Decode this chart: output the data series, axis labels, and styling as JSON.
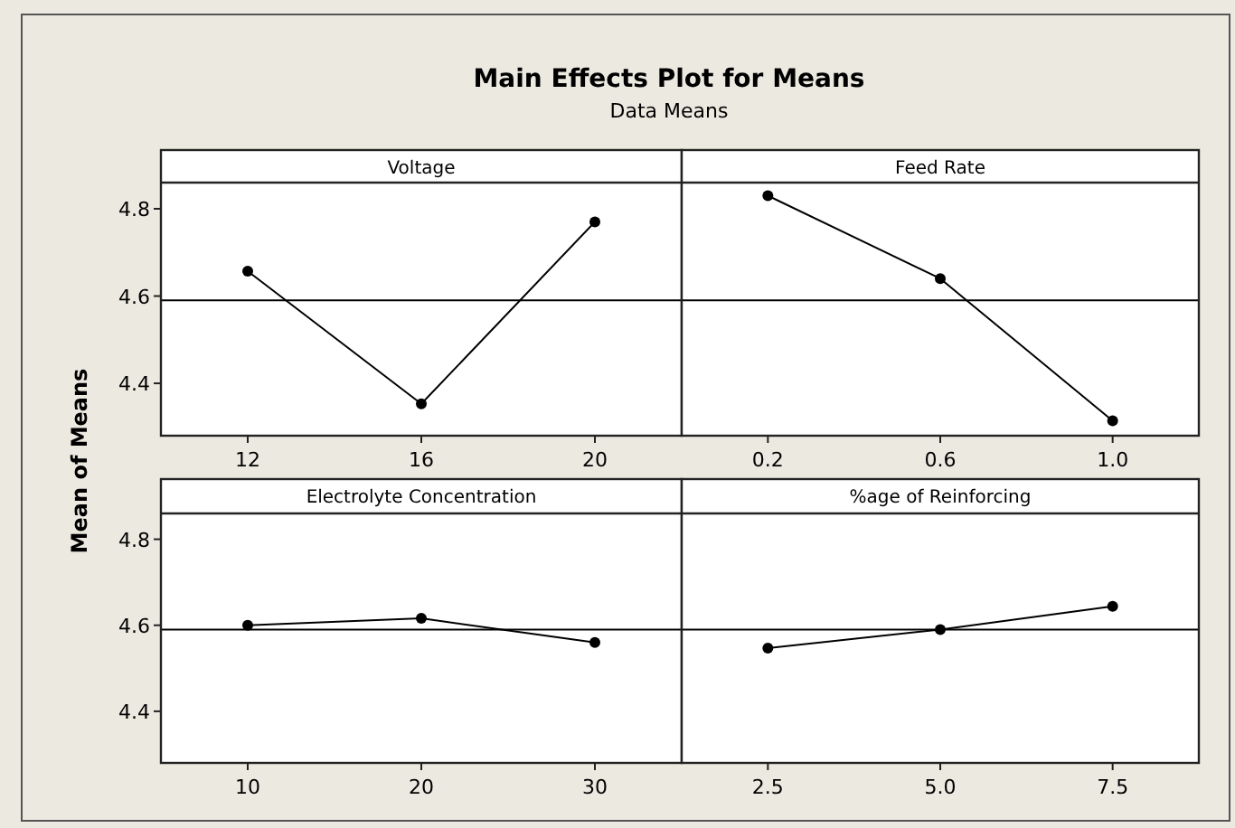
{
  "chart_data": [
    {
      "type": "other",
      "title": "Main Effects Plot for Means",
      "subtitle": "Data Means",
      "ylabel": "Mean of Means"
    },
    {
      "type": "line",
      "title": "Voltage",
      "x": [
        12,
        16,
        20
      ],
      "series": [
        {
          "color": "#000000",
          "values": [
            4.657,
            4.353,
            4.77
          ]
        }
      ],
      "xlim": [
        10,
        22
      ],
      "xticks": [
        12,
        16,
        20
      ],
      "ylim": [
        4.28,
        4.86
      ],
      "yticks": [
        4.4,
        4.6,
        4.8
      ],
      "ref_lines": [
        {
          "axis": "y",
          "value": 4.59,
          "color": "#000000"
        }
      ],
      "marker": "circle",
      "grid": false
    },
    {
      "type": "line",
      "title": "Feed Rate",
      "x": [
        0.2,
        0.6,
        1.0
      ],
      "series": [
        {
          "color": "#000000",
          "values": [
            4.83,
            4.64,
            4.314
          ]
        }
      ],
      "xlim": [
        0,
        1.2
      ],
      "xticks": [
        {
          "value": 0.2,
          "label": "0.2"
        },
        {
          "value": 0.6,
          "label": "0.6"
        },
        {
          "value": 1.0,
          "label": "1.0"
        }
      ],
      "ylim": [
        4.28,
        4.86
      ],
      "tick_labels": "x",
      "ref_lines": [
        {
          "axis": "y",
          "value": 4.59,
          "color": "#000000"
        }
      ],
      "marker": "circle",
      "grid": false
    },
    {
      "type": "line",
      "title": "Electrolyte Concentration",
      "x": [
        10,
        20,
        30
      ],
      "series": [
        {
          "color": "#000000",
          "values": [
            4.6,
            4.616,
            4.56
          ]
        }
      ],
      "xlim": [
        5,
        35
      ],
      "xticks": [
        10,
        20,
        30
      ],
      "ylim": [
        4.28,
        4.86
      ],
      "yticks": [
        4.4,
        4.6,
        4.8
      ],
      "ref_lines": [
        {
          "axis": "y",
          "value": 4.59,
          "color": "#000000"
        }
      ],
      "marker": "circle",
      "grid": false
    },
    {
      "type": "line",
      "title": "%age of Reinforcing",
      "x": [
        2.5,
        5.0,
        7.5
      ],
      "series": [
        {
          "color": "#000000",
          "values": [
            4.547,
            4.59,
            4.644
          ]
        }
      ],
      "xlim": [
        1.25,
        8.75
      ],
      "xticks": [
        {
          "value": 2.5,
          "label": "2.5"
        },
        {
          "value": 5.0,
          "label": "5.0"
        },
        {
          "value": 7.5,
          "label": "7.5"
        }
      ],
      "ylim": [
        4.28,
        4.86
      ],
      "tick_labels": "x",
      "ref_lines": [
        {
          "axis": "y",
          "value": 4.59,
          "color": "#000000"
        }
      ],
      "marker": "circle",
      "grid": false
    }
  ]
}
